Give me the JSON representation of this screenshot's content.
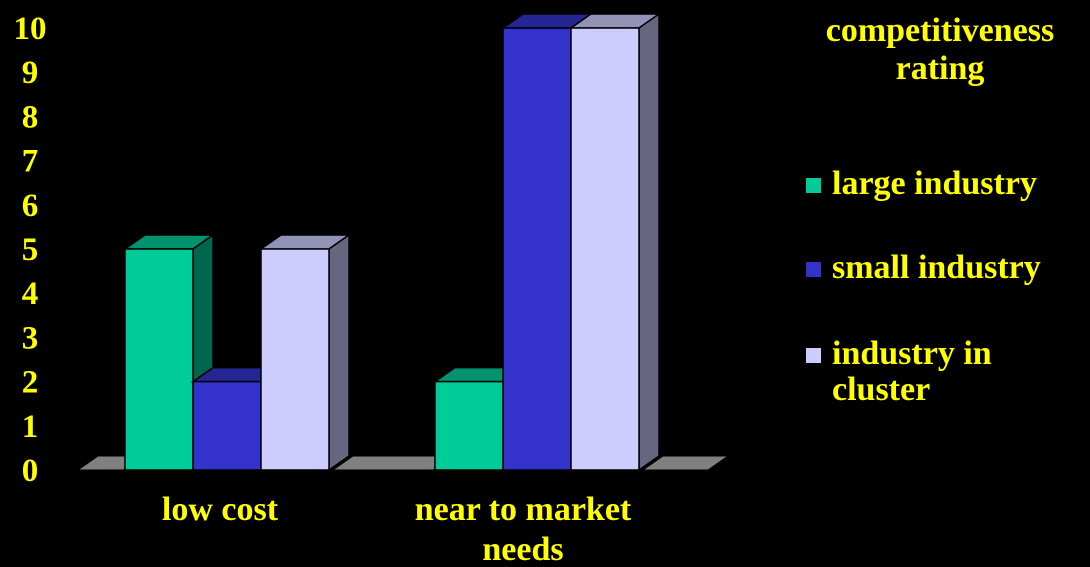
{
  "chart_data": {
    "type": "bar",
    "categories": [
      [
        "low cost"
      ],
      [
        "near to market",
        "needs"
      ]
    ],
    "series": [
      {
        "name": "large industry",
        "values": [
          5,
          2
        ],
        "color": "#00cc99"
      },
      {
        "name": "small industry",
        "values": [
          2,
          10
        ],
        "color": "#3333cc"
      },
      {
        "name": "industry in cluster",
        "values": [
          5,
          10
        ],
        "color": "#ccccff"
      }
    ],
    "ylim": [
      0,
      10
    ],
    "yticks": [
      "0",
      "1",
      "2",
      "3",
      "4",
      "5",
      "6",
      "7",
      "8",
      "9",
      "10"
    ],
    "legend": {
      "title_lines": [
        "competitiveness",
        "rating"
      ],
      "items": [
        {
          "lines": [
            "large industry"
          ]
        },
        {
          "lines": [
            "small industry"
          ]
        },
        {
          "lines": [
            "industry in",
            "cluster"
          ]
        }
      ],
      "placement": "right"
    },
    "style": "3d",
    "grid": false
  },
  "colors": {
    "background": "#000000",
    "text": "#ffff00",
    "floor": "#808080"
  }
}
